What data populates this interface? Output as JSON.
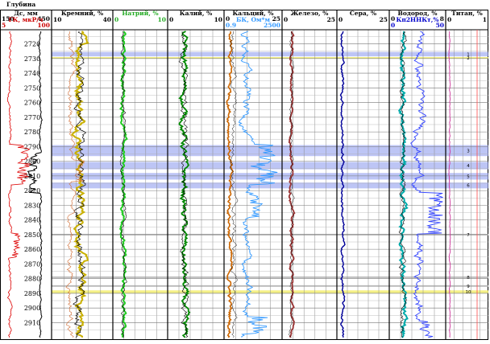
{
  "chart_data": {
    "type": "line",
    "title": "",
    "depth_header": "Глубина",
    "depth_ticks": [
      2720,
      2730,
      2740,
      2750,
      2760,
      2770,
      2780,
      2790,
      2800,
      2810,
      2820,
      2830,
      2840,
      2850,
      2860,
      2870,
      2880,
      2890,
      2900,
      2910
    ],
    "depth_range": [
      2712,
      2918
    ],
    "tracks": [
      {
        "id": "t1",
        "title": "Дс, мм",
        "scale_left": "150",
        "scale_right": "450",
        "title2": "ГК, мкР/ч",
        "scale2_left": "5",
        "scale2_right": "100",
        "title_color": "#000000",
        "title2_color": "#cc0000",
        "series_colors": [
          "#000000",
          "#dd0000"
        ]
      },
      {
        "id": "t2",
        "title": "Кремний, %",
        "scale_left": "10",
        "scale_right": "40",
        "title_color": "#000000",
        "series_colors": [
          "#b8a000",
          "#000000",
          "#d06a30"
        ]
      },
      {
        "id": "t3",
        "title": "Натрий, %",
        "scale_left": "0",
        "scale_right": "10",
        "title_color": "#22aa22",
        "series_colors": [
          "#22cc22",
          "#000000"
        ]
      },
      {
        "id": "t4",
        "title": "Калий, %",
        "scale_left": "0",
        "scale_right": "10",
        "title_color": "#000000",
        "series_colors": [
          "#006600",
          "#000000"
        ]
      },
      {
        "id": "t5",
        "title": "Кальций, %",
        "scale_left": "0",
        "scale_right": "25",
        "title2": "БК, Ом*м",
        "scale2_left": "0.9",
        "scale2_right": "2500",
        "title_color": "#000000",
        "title2_color": "#3399ff",
        "series_colors": [
          "#cc6600",
          "#000000",
          "#3399ff"
        ]
      },
      {
        "id": "t6",
        "title": "Железо, %",
        "scale_left": "0",
        "scale_right": "25",
        "title_color": "#000000",
        "series_colors": [
          "#993333",
          "#000000"
        ]
      },
      {
        "id": "t7",
        "title": "Сера, %",
        "scale_left": "0",
        "scale_right": "25",
        "title_color": "#000000",
        "series_colors": [
          "#000099",
          "#000000"
        ]
      },
      {
        "id": "t8",
        "title": "Водород, %",
        "scale_left": "0",
        "scale_right": "8",
        "title2": "Кп2ННКт,%",
        "scale2_left": "0",
        "scale2_right": "50",
        "title_color": "#000000",
        "title2_color": "#0000cc",
        "series_colors": [
          "#00aaaa",
          "#000000",
          "#3344ff"
        ]
      },
      {
        "id": "t9",
        "title": "Титан, %",
        "scale_left": "0",
        "scale_right": "1",
        "title_color": "#000000",
        "series_colors": [
          "#cc3399"
        ]
      }
    ],
    "intervals": [
      {
        "top": 2725.5,
        "bottom": 2728.5,
        "type": "blue",
        "label": "1"
      },
      {
        "top": 2729.0,
        "bottom": 2730.0,
        "type": "yellow",
        "label": "2"
      },
      {
        "top": 2789.0,
        "bottom": 2796.5,
        "type": "blue",
        "label": "3"
      },
      {
        "top": 2800.5,
        "bottom": 2805.5,
        "type": "blue",
        "label": "4"
      },
      {
        "top": 2808.0,
        "bottom": 2812.5,
        "type": "blue",
        "label": "5"
      },
      {
        "top": 2814.5,
        "bottom": 2818.5,
        "type": "blue",
        "label": "6"
      },
      {
        "top": 2849.5,
        "bottom": 2850.5,
        "type": "gray",
        "label": "7"
      },
      {
        "top": 2878.5,
        "bottom": 2879.5,
        "type": "gray",
        "label": "8"
      },
      {
        "top": 2884.5,
        "bottom": 2885.5,
        "type": "gray",
        "label": "9"
      },
      {
        "top": 2888.0,
        "bottom": 2890.0,
        "type": "yellow",
        "label": "10"
      }
    ]
  }
}
